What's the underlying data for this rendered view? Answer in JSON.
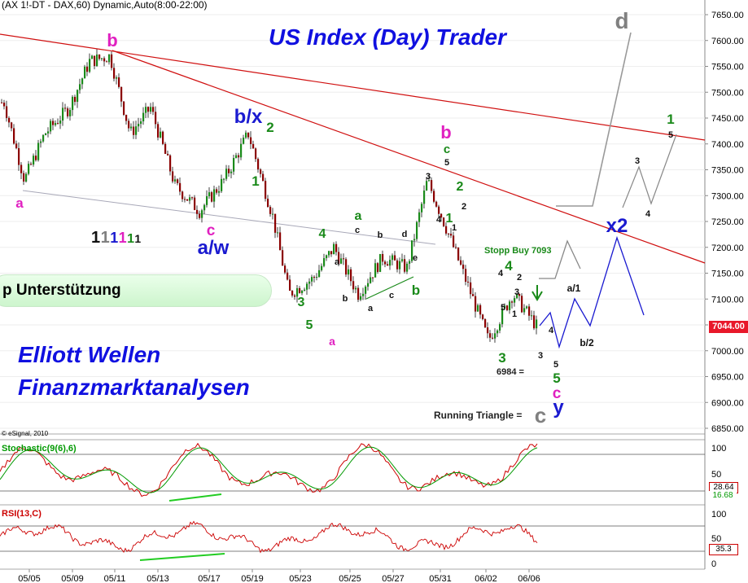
{
  "header": {
    "symbol_line": "(AX 1!-DT - DAX,60) Dynamic,Auto(8:00-22:00)"
  },
  "title": "US Index (Day) Trader",
  "brand": {
    "line1": "Elliott Wellen",
    "line2": "Finanzmarktanalysen"
  },
  "banner": "p Unterstützung",
  "copyright": "© eSignal, 2010",
  "stopp_label": "Stopp Buy 7093",
  "running_triangle": "Running Triangle =",
  "level_6984": "6984 =",
  "last_price": "7044.00",
  "stoch": {
    "label": "Stochastic(9(6),6)",
    "v1": "28.64",
    "v2": "16.68",
    "color_k": "#cc0000",
    "color_d": "#009900"
  },
  "rsi": {
    "label": "RSI(13,C)",
    "value": "35.3",
    "color": "#cc0000"
  },
  "colors": {
    "price_up": "#1a8a1a",
    "price_down": "#8b0000",
    "trend": "#d01010",
    "wave_blue": "#1a1ad0",
    "wave_green": "#1a8a1a",
    "wave_magenta": "#e020c0",
    "wave_grey": "#808080"
  },
  "wave_labels": [
    {
      "t": "b",
      "c": "magenta"
    },
    {
      "t": "a",
      "c": "magenta"
    },
    {
      "t": "b/x",
      "c": "blue"
    },
    {
      "t": "2",
      "c": "green"
    },
    {
      "t": "1",
      "c": "green"
    },
    {
      "t": "c",
      "c": "magenta"
    },
    {
      "t": "a/w",
      "c": "blue"
    },
    {
      "t": "4",
      "c": "green"
    },
    {
      "t": "a",
      "c": "green"
    },
    {
      "t": "c",
      "c": "black"
    },
    {
      "t": "b",
      "c": "black"
    },
    {
      "t": "d",
      "c": "black"
    },
    {
      "t": "a",
      "c": "black"
    },
    {
      "t": "b",
      "c": "black"
    },
    {
      "t": "c",
      "c": "black"
    },
    {
      "t": "a",
      "c": "black"
    },
    {
      "t": "e",
      "c": "black"
    },
    {
      "t": "b",
      "c": "green"
    },
    {
      "t": "3",
      "c": "green"
    },
    {
      "t": "5",
      "c": "green"
    },
    {
      "t": "a",
      "c": "magenta"
    },
    {
      "t": "b",
      "c": "magenta"
    },
    {
      "t": "c",
      "c": "green"
    },
    {
      "t": "5",
      "c": "black"
    },
    {
      "t": "3",
      "c": "black"
    },
    {
      "t": "2",
      "c": "green"
    },
    {
      "t": "4",
      "c": "black"
    },
    {
      "t": "1",
      "c": "green"
    },
    {
      "t": "1",
      "c": "black"
    },
    {
      "t": "2",
      "c": "black"
    },
    {
      "t": "4",
      "c": "green"
    },
    {
      "t": "4",
      "c": "black"
    },
    {
      "t": "2",
      "c": "black"
    },
    {
      "t": "3",
      "c": "black"
    },
    {
      "t": "5",
      "c": "black"
    },
    {
      "t": "1",
      "c": "black"
    },
    {
      "t": "3",
      "c": "green"
    },
    {
      "t": "4",
      "c": "black"
    },
    {
      "t": "3",
      "c": "black"
    },
    {
      "t": "5",
      "c": "black"
    },
    {
      "t": "5",
      "c": "green"
    },
    {
      "t": "c",
      "c": "magenta"
    },
    {
      "t": "y",
      "c": "blue"
    },
    {
      "t": "c",
      "c": "grey"
    },
    {
      "t": "a/1",
      "c": "black"
    },
    {
      "t": "b/2",
      "c": "black"
    },
    {
      "t": "x2",
      "c": "blue"
    },
    {
      "t": "3",
      "c": "black"
    },
    {
      "t": "4",
      "c": "black"
    },
    {
      "t": "d",
      "c": "grey"
    },
    {
      "t": "1",
      "c": "green"
    },
    {
      "t": "5",
      "c": "black"
    }
  ],
  "degree_marks": [
    "1",
    "1",
    "1",
    "1",
    "1",
    "1"
  ],
  "chart_data": [
    {
      "type": "candlestick",
      "ylim": [
        6830,
        7670
      ],
      "yticks": [
        6850,
        6900,
        6950,
        7000,
        7050,
        7100,
        7150,
        7200,
        7250,
        7300,
        7350,
        7400,
        7450,
        7500,
        7550,
        7600,
        7650
      ],
      "ytick_labels": [
        "6850.00",
        "6900.00",
        "6950.00",
        "7000.00",
        "7050.00",
        "7100.00",
        "7150.00",
        "7200.00",
        "7250.00",
        "7300.00",
        "7350.00",
        "7400.00",
        "7450.00",
        "7500.00",
        "7550.00",
        "7600.00",
        "7650.00"
      ],
      "x_categories": [
        "05/05",
        "05/09",
        "05/11",
        "05/13",
        "05/17",
        "05/19",
        "05/23",
        "05/25",
        "05/27",
        "05/31",
        "06/02",
        "06/06"
      ],
      "anchors": [
        {
          "x": "05/04",
          "close": 7480
        },
        {
          "x": "05/05",
          "close": 7330
        },
        {
          "x": "05/06",
          "close": 7420
        },
        {
          "x": "05/09",
          "close": 7470
        },
        {
          "x": "05/10",
          "close": 7560
        },
        {
          "x": "05/11",
          "close": 7570
        },
        {
          "x": "05/12",
          "close": 7420
        },
        {
          "x": "05/13",
          "close": 7470
        },
        {
          "x": "05/16",
          "close": 7320
        },
        {
          "x": "05/17",
          "close": 7270
        },
        {
          "x": "05/18",
          "close": 7330
        },
        {
          "x": "05/19",
          "close": 7420
        },
        {
          "x": "05/20",
          "close": 7260
        },
        {
          "x": "05/23",
          "close": 7110
        },
        {
          "x": "05/24",
          "close": 7140
        },
        {
          "x": "05/25",
          "close": 7200
        },
        {
          "x": "05/26",
          "close": 7110
        },
        {
          "x": "05/27",
          "close": 7180
        },
        {
          "x": "05/30",
          "close": 7160
        },
        {
          "x": "05/31",
          "close": 7330
        },
        {
          "x": "06/01",
          "close": 7230
        },
        {
          "x": "06/02",
          "close": 7020
        },
        {
          "x": "06/03",
          "close": 7110
        },
        {
          "x": "06/06",
          "close": 7044
        }
      ],
      "last_price": 7044.0
    },
    {
      "type": "line",
      "title": "Stochastic(9(6),6)",
      "ylim": [
        0,
        100
      ],
      "yticks": [
        0,
        50,
        100
      ],
      "series": [
        {
          "name": "%K",
          "color": "#cc0000"
        },
        {
          "name": "%D",
          "color": "#009900"
        }
      ],
      "last_values": [
        28.64,
        16.68
      ],
      "levels": [
        20,
        80
      ]
    },
    {
      "type": "line",
      "title": "RSI(13,C)",
      "ylim": [
        0,
        100
      ],
      "yticks": [
        0,
        50,
        100
      ],
      "series": [
        {
          "name": "RSI(13,C)",
          "color": "#cc0000"
        }
      ],
      "last_value": 35.3,
      "levels": [
        30,
        70
      ]
    }
  ]
}
